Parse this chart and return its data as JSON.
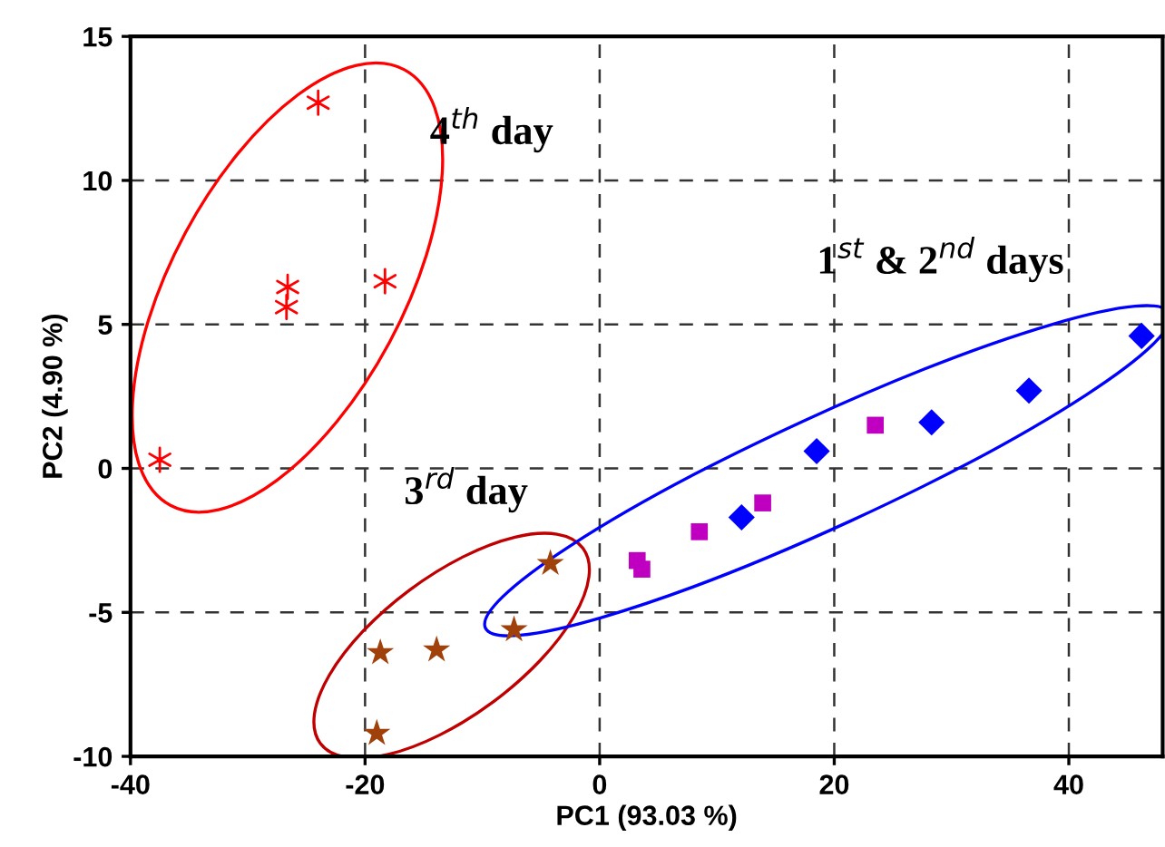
{
  "chart_data": {
    "type": "scatter",
    "xlabel": "PC1 (93.03 %)",
    "ylabel": "PC2 (4.90 %)",
    "xlim": [
      -40,
      48
    ],
    "ylim": [
      -10,
      15
    ],
    "xticks": [
      -40,
      -20,
      0,
      20,
      40
    ],
    "yticks": [
      -10,
      -5,
      0,
      5,
      10,
      15
    ],
    "grid": true,
    "series": [
      {
        "color": "#ff0000",
        "marker": "cross",
        "x": [
          -37.5,
          -24,
          -26.6,
          -26.7,
          -18.3
        ],
        "values": [
          0.3,
          12.7,
          6.3,
          5.6,
          6.5
        ]
      },
      {
        "color": "#a0400a",
        "marker": "star",
        "x": [
          -19.0,
          -18.7,
          -13.9,
          -7.3,
          -4.2
        ],
        "values": [
          -9.2,
          -6.4,
          -6.3,
          -5.6,
          -3.3
        ]
      },
      {
        "color": "#c000c0",
        "marker": "square",
        "x": [
          3.2,
          3.6,
          8.5,
          13.9,
          23.5
        ],
        "values": [
          -3.2,
          -3.5,
          -2.2,
          -1.2,
          1.5
        ]
      },
      {
        "color": "#0000ff",
        "marker": "diamond",
        "x": [
          12.1,
          18.5,
          28.3,
          36.6,
          46.2
        ],
        "values": [
          -1.7,
          0.6,
          1.6,
          2.7,
          4.6
        ]
      }
    ],
    "annotations": [
      "4$^{th}$ day",
      "3$^{rd}$ day",
      "1$^{st}$ & 2$^{nd}$ days"
    ]
  }
}
